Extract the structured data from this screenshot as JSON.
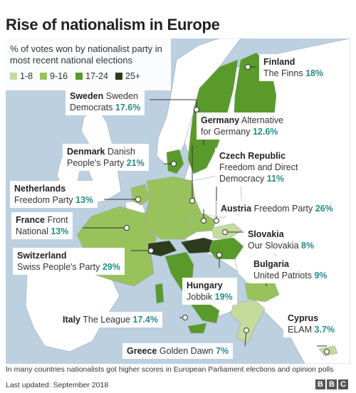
{
  "title": "Rise of nationalism in Europe",
  "legend": {
    "title": "% of votes won by nationalist party in most recent national elections",
    "bins": [
      {
        "label": "1-8",
        "color": "#c5db9c"
      },
      {
        "label": "9-16",
        "color": "#98c25c"
      },
      {
        "label": "17-24",
        "color": "#5a9a2b"
      },
      {
        "label": "25+",
        "color": "#2c3b1c"
      }
    ]
  },
  "colors": {
    "sea": "#bcd0e0",
    "non_highlighted": "#ffffff",
    "percent_text": "#2a8a8a"
  },
  "countries": [
    {
      "country": "Finland",
      "party": "The Finns",
      "percent": "18%",
      "value": 18
    },
    {
      "country": "Sweden",
      "party": "Sweden Democrats",
      "party_line1": "Sweden",
      "party_line2": "Democrats",
      "percent": "17.6%",
      "value": 17.6
    },
    {
      "country": "Germany",
      "party": "Alternative for Germany",
      "party_line1": "Alternative",
      "party_line2": "for Germany",
      "percent": "12.6%",
      "value": 12.6
    },
    {
      "country": "Denmark",
      "party": "Danish People's Party",
      "party_line1": "Danish",
      "party_line2": "People's Party",
      "percent": "21%",
      "value": 21
    },
    {
      "country": "Czech Republic",
      "party": "Freedom and Direct Democracy",
      "party_line1": "Freedom and Direct",
      "party_line2": "Democracy",
      "percent": "11%",
      "value": 11
    },
    {
      "country": "Netherlands",
      "party": "Freedom Party",
      "percent": "13%",
      "value": 13
    },
    {
      "country": "Austria",
      "party": "Freedom Party",
      "percent": "26%",
      "value": 26
    },
    {
      "country": "France",
      "party": "National Front",
      "party_line1": "Front",
      "party_line2": "National",
      "percent": "13%",
      "value": 13
    },
    {
      "country": "Slovakia",
      "party": "Our Slovakia",
      "percent": "8%",
      "value": 8
    },
    {
      "country": "Switzerland",
      "party": "Swiss People's Party",
      "percent": "29%",
      "value": 29
    },
    {
      "country": "Bulgaria",
      "party": "United Patriots",
      "percent": "9%",
      "value": 9
    },
    {
      "country": "Hungary",
      "party": "Jobbik",
      "percent": "19%",
      "value": 19
    },
    {
      "country": "Cyprus",
      "party": "ELAM",
      "percent": "3.7%",
      "value": 3.7
    },
    {
      "country": "Italy",
      "party": "The League",
      "percent": "17.4%",
      "value": 17.4
    },
    {
      "country": "Greece",
      "party": "Golden Dawn",
      "percent": "7%",
      "value": 7
    }
  ],
  "footnote": "In many countries nationalists got higher scores in European Parliament elections and opinion polls",
  "last_updated": "Last updated: September 2018",
  "source_logo": "BBC"
}
